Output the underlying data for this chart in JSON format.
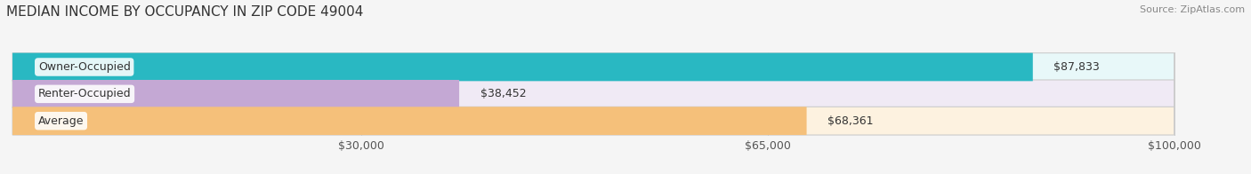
{
  "title": "MEDIAN INCOME BY OCCUPANCY IN ZIP CODE 49004",
  "source": "Source: ZipAtlas.com",
  "categories": [
    "Owner-Occupied",
    "Renter-Occupied",
    "Average"
  ],
  "values": [
    87833,
    38452,
    68361
  ],
  "labels": [
    "$87,833",
    "$38,452",
    "$68,361"
  ],
  "bar_colors": [
    "#29b8c2",
    "#c4a8d4",
    "#f5c07a"
  ],
  "bar_bg_colors": [
    "#e8f8f9",
    "#f0eaf5",
    "#fdf2e0"
  ],
  "xmin": 0,
  "xmax": 100000,
  "xticks": [
    30000,
    65000,
    100000
  ],
  "xtick_labels": [
    "$30,000",
    "$65,000",
    "$100,000"
  ],
  "bar_height": 0.55,
  "background_color": "#f5f5f5",
  "title_fontsize": 11,
  "source_fontsize": 8,
  "label_fontsize": 9,
  "tick_fontsize": 9
}
